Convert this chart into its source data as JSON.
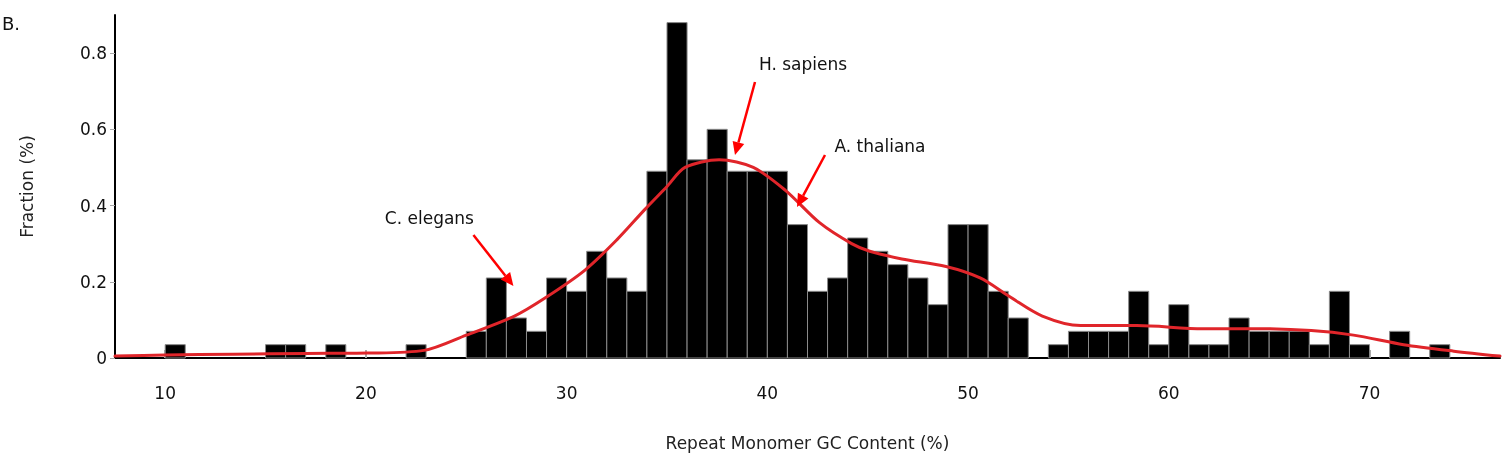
{
  "chart_data": {
    "type": "histogram",
    "xlabel": "Repeat Monomer GC Content (%)",
    "ylabel": "Fraction (%)",
    "bins": [
      10,
      11,
      12,
      13,
      14,
      15,
      16,
      17,
      18,
      19,
      20,
      21,
      22,
      23,
      24,
      25,
      26,
      27,
      28,
      29,
      30,
      31,
      32,
      33,
      34,
      35,
      36,
      37,
      38,
      39,
      40,
      41,
      42,
      43,
      44,
      45,
      46,
      47,
      48,
      49,
      50,
      51,
      52,
      53,
      54,
      55,
      56,
      57,
      58,
      59,
      60,
      61,
      62,
      63,
      64,
      65,
      66,
      67,
      68,
      69,
      70,
      71,
      72,
      73,
      74
    ],
    "values": [
      0.035,
      0,
      0,
      0,
      0,
      0.035,
      0.035,
      0,
      0.035,
      0,
      0,
      0,
      0.035,
      0,
      0,
      0.07,
      0.21,
      0.105,
      0.07,
      0.21,
      0.175,
      0.28,
      0.21,
      0.175,
      0.49,
      0.88,
      0.52,
      0.6,
      0.49,
      0.49,
      0.49,
      0.35,
      0.175,
      0.21,
      0.315,
      0.28,
      0.245,
      0.21,
      0.14,
      0.35,
      0.35,
      0.175,
      0.105,
      0,
      0.035,
      0.07,
      0.07,
      0.07,
      0.175,
      0.035,
      0.14,
      0.035,
      0.035,
      0.105,
      0.07,
      0.07,
      0.07,
      0.035,
      0.175,
      0.035,
      0,
      0.07,
      0,
      0.035
    ],
    "color": "#000000",
    "series": [
      {
        "type": "line",
        "color": "#e0252a",
        "x": [
          7.5,
          10,
          13.4,
          17,
          20.1,
          22.9,
          25,
          27.4,
          29,
          30.9,
          32.5,
          33.9,
          35,
          35.9,
          37.6,
          39.3,
          40.9,
          42.6,
          44.2,
          45.1,
          46.7,
          48.9,
          50.6,
          52.1,
          53.7,
          55.6,
          58.4,
          61.7,
          64.2,
          67.1,
          69.2,
          71.7,
          74.2,
          76.5
        ],
        "values": [
          0.005,
          0.008,
          0.01,
          0.012,
          0.013,
          0.02,
          0.06,
          0.11,
          0.16,
          0.23,
          0.31,
          0.39,
          0.45,
          0.5,
          0.52,
          0.5,
          0.44,
          0.355,
          0.3,
          0.28,
          0.26,
          0.24,
          0.21,
          0.16,
          0.11,
          0.085,
          0.085,
          0.077,
          0.077,
          0.072,
          0.06,
          0.035,
          0.018,
          0.005
        ]
      }
    ],
    "xlim": [
      7.5,
      76.5
    ],
    "xticks": [
      10,
      20,
      30,
      40,
      50,
      60,
      70
    ],
    "ylim": [
      0,
      0.9
    ],
    "yticks": [
      0,
      0.2,
      0.4,
      0.6,
      0.8
    ],
    "grid": false,
    "marker": "none",
    "line_style": "solid",
    "annotations": [
      "B.",
      {
        "text": "C. elegans",
        "x": 27,
        "y": 0.21
      },
      "H. sapiens",
      "A. thaliana"
    ]
  }
}
